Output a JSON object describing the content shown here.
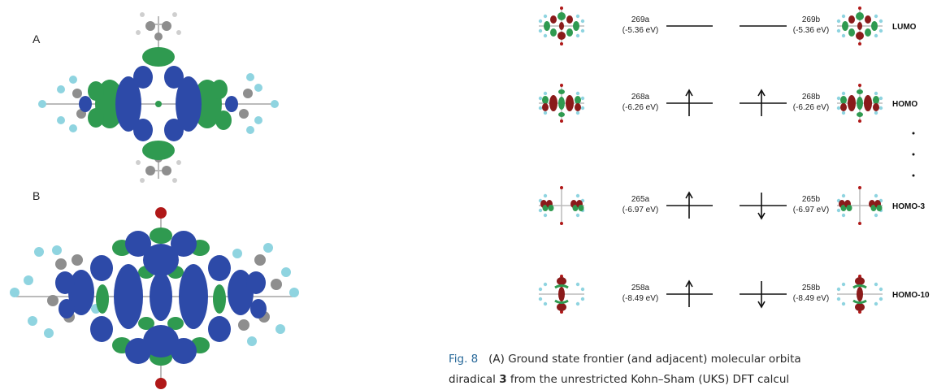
{
  "panels": {
    "a": "A",
    "b": "B"
  },
  "levels": [
    {
      "alpha_label": "269a",
      "alpha_energy": "(-5.36 eV)",
      "beta_label": "269b",
      "beta_energy": "(-5.36 eV)",
      "name": "LUMO",
      "alpha_spin": "none",
      "beta_spin": "none"
    },
    {
      "alpha_label": "268a",
      "alpha_energy": "(-6.26 eV)",
      "beta_label": "268b",
      "beta_energy": "(-6.26 eV)",
      "name": "HOMO",
      "alpha_spin": "up",
      "beta_spin": "up"
    },
    {
      "alpha_label": "265a",
      "alpha_energy": "(-6.97 eV)",
      "beta_label": "265b",
      "beta_energy": "(-6.97 eV)",
      "name": "HOMO-3",
      "alpha_spin": "up",
      "beta_spin": "down"
    },
    {
      "alpha_label": "258a",
      "alpha_energy": "(-8.49 eV)",
      "beta_label": "258b",
      "beta_energy": "(-8.49 eV)",
      "name": "HOMO-10",
      "alpha_spin": "up",
      "beta_spin": "down"
    }
  ],
  "caption": {
    "fig_label": "Fig. 8",
    "line1": "(A) Ground state frontier (and adjacent) molecular orbita",
    "line2_pre": "diradical ",
    "line2_num": "3",
    "line2_post": " from the unrestricted Kohn–Sham (UKS) DFT calcul"
  },
  "colors": {
    "blue_lobe": "#2d4aa8",
    "green_lobe": "#2f9a50",
    "dark_red_lobe": "#8a1a1a",
    "fluorine": "#8fd4e0",
    "carbon": "#8e8e8e",
    "oxygen": "#b01818"
  }
}
